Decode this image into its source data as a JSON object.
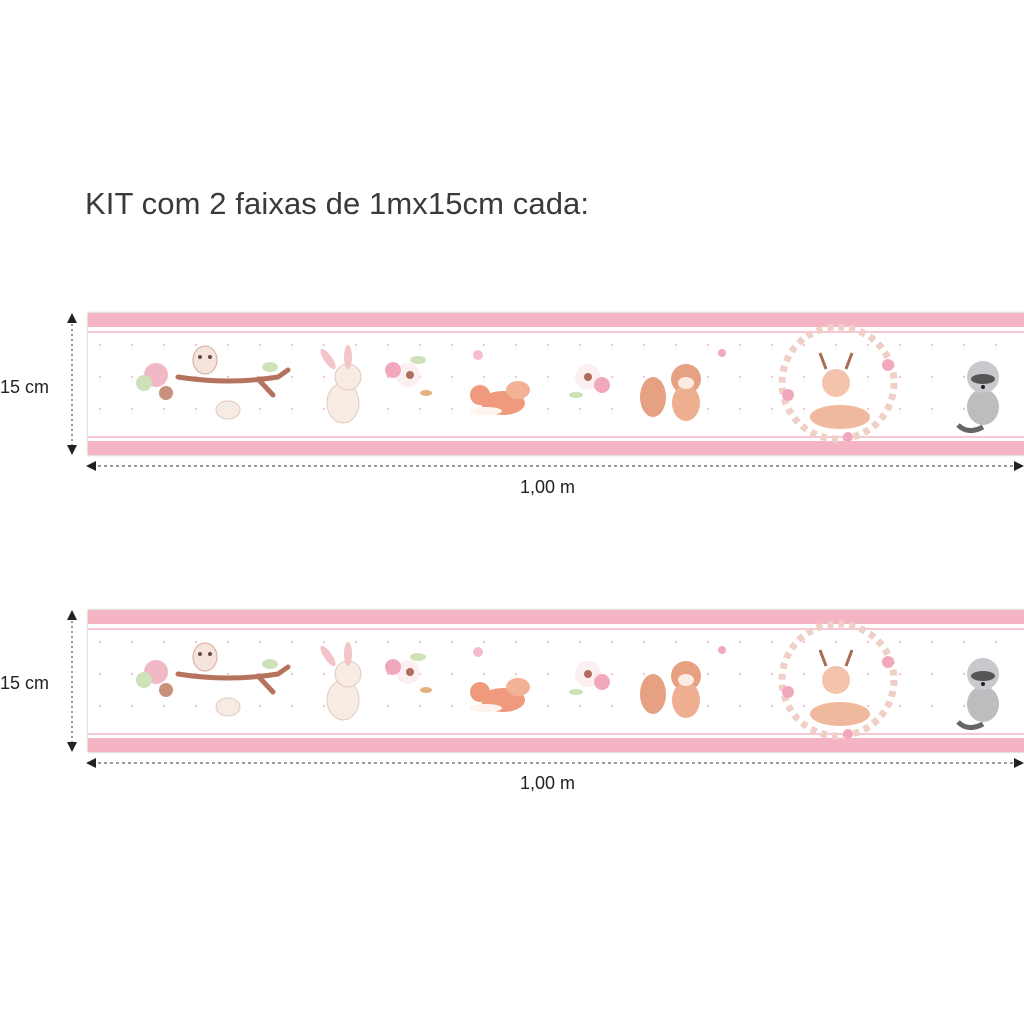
{
  "title": "KIT com 2 faixas de 1mx15cm cada:",
  "bands": [
    {
      "height_label": "15 cm",
      "width_label": "1,00 m"
    },
    {
      "height_label": "15 cm",
      "width_label": "1,00 m"
    }
  ],
  "colors": {
    "stripe": "#f4b4c3",
    "stripe_light": "#f7c8d3",
    "text": "#333333"
  },
  "illustrations": [
    "owl-on-branch",
    "bird",
    "bunny",
    "flowers",
    "fox",
    "flowers",
    "squirrel",
    "deer-in-floral-wreath",
    "raccoon"
  ]
}
